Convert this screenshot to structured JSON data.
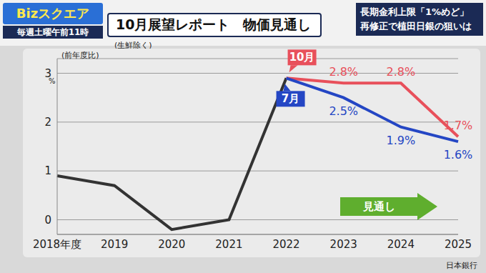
{
  "screen": {
    "program": "Bizスクエア",
    "schedule": "毎週土曜午前11時",
    "headline": [
      "長期金利上限「1%めど」",
      "再修正で植田日銀の狙いは"
    ]
  },
  "chart_data": {
    "type": "line",
    "title": "10月展望レポート　物価見通し",
    "subtitle": "(生鮮除く)",
    "y_label": "(前年度比)",
    "y_unit": "%",
    "annotations": [
      "見通し"
    ],
    "source": "日本銀行",
    "categories": [
      "2018年度",
      "2019",
      "2020",
      "2021",
      "2022",
      "2023",
      "2024",
      "2025"
    ],
    "series": [
      {
        "color": "#333333",
        "values": [
          0.9,
          0.7,
          -0.2,
          0.0,
          2.9,
          null,
          null,
          null
        ]
      },
      {
        "name": "10月",
        "color": "#e8505b",
        "values": [
          null,
          null,
          null,
          null,
          2.9,
          2.8,
          2.8,
          1.7
        ],
        "data_labels": true,
        "value_labels": [
          null,
          null,
          null,
          null,
          null,
          "2.8%",
          "2.8%",
          "1.7%"
        ]
      },
      {
        "name": "7月",
        "color": "#2446c4",
        "values": [
          null,
          null,
          null,
          null,
          2.9,
          2.5,
          1.9,
          1.6
        ],
        "data_labels": true,
        "value_labels": [
          null,
          null,
          null,
          null,
          null,
          "2.5%",
          "1.9%",
          "1.6%"
        ]
      }
    ],
    "ylim": [
      -0.3,
      3.3
    ],
    "yticks": [
      0,
      1,
      2,
      3
    ],
    "grid": true
  }
}
